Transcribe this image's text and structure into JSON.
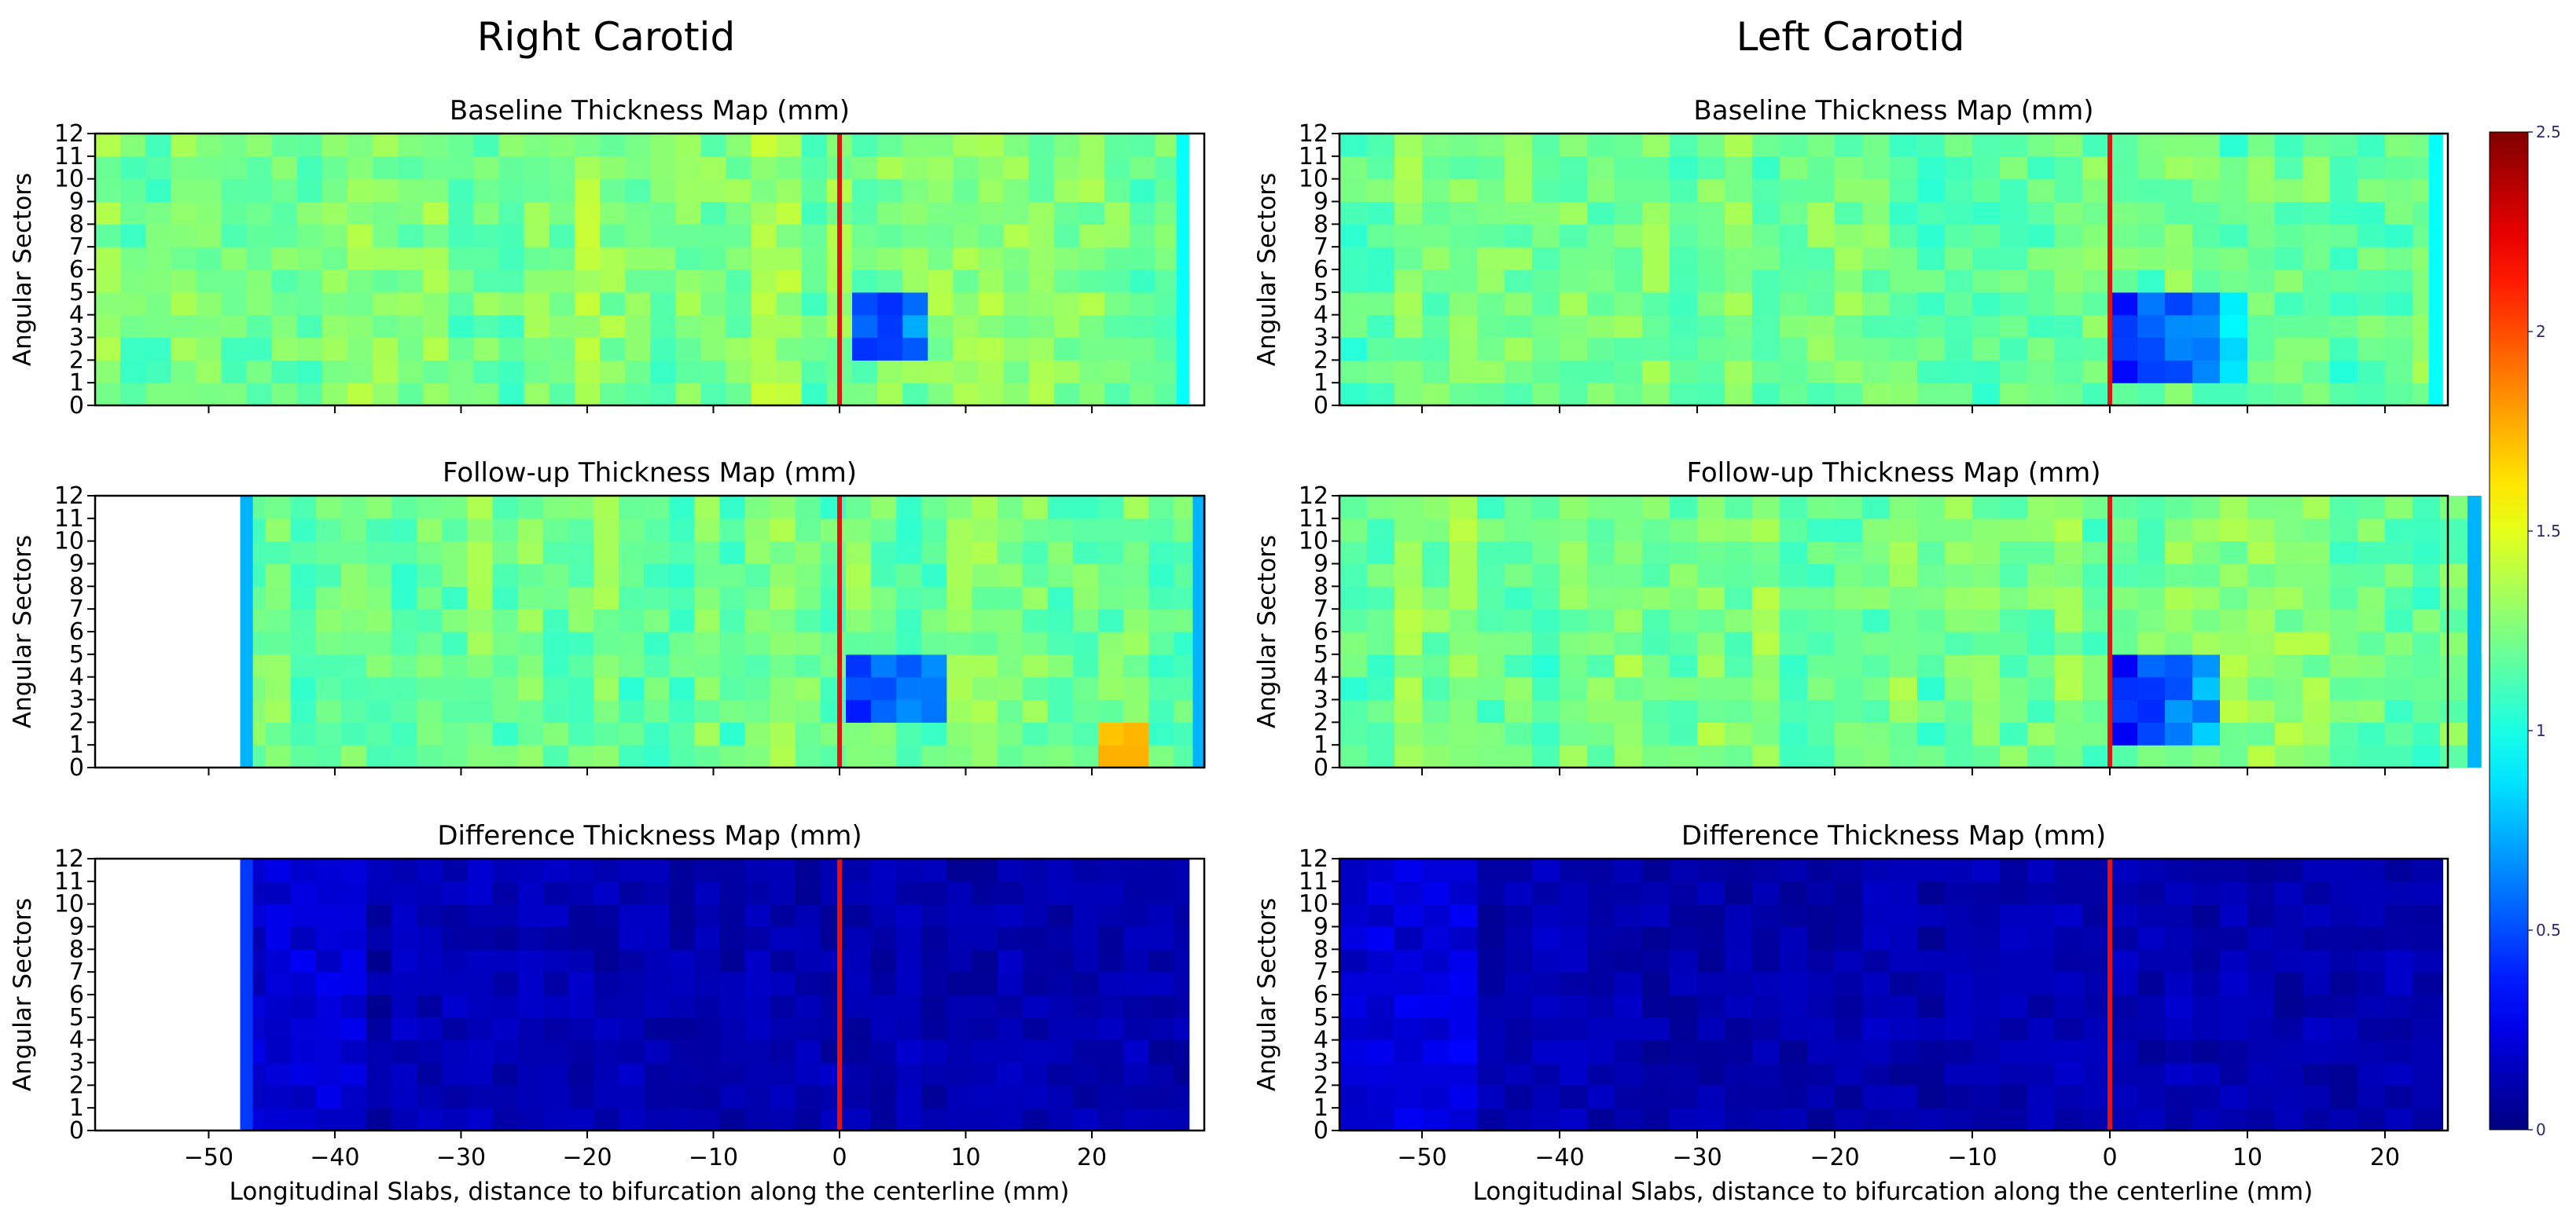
{
  "figure": {
    "columns": [
      {
        "title": "Right Carotid",
        "side": "right",
        "x_data_range": [
          -59,
          29
        ],
        "panels": [
          {
            "key": "baseline",
            "title": "Baseline Thickness Map (mm)",
            "coverage": [
              -59,
              27.7
            ]
          },
          {
            "key": "followup",
            "title": "Follow-up Thickness Map (mm)",
            "coverage": [
              -47.5,
              29
            ]
          },
          {
            "key": "difference",
            "title": "Difference Thickness Map (mm)",
            "coverage": [
              -47.5,
              27.7
            ]
          }
        ]
      },
      {
        "title": "Left Carotid",
        "side": "left",
        "x_data_range": [
          -56,
          27
        ],
        "panels": [
          {
            "key": "baseline",
            "title": "Baseline Thickness Map (mm)",
            "coverage": [
              -56,
              24.2
            ]
          },
          {
            "key": "followup",
            "title": "Follow-up Thickness Map (mm)",
            "coverage": [
              -56,
              27
            ]
          },
          {
            "key": "difference",
            "title": "Difference Thickness Map (mm)",
            "coverage": [
              -56,
              24.2
            ]
          }
        ]
      }
    ],
    "y_label": "Angular Sectors",
    "x_label": "Longitudinal Slabs, distance to bifurcation along the centerline (mm)",
    "y_ticks": [
      "0",
      "1",
      "2",
      "3",
      "4",
      "5",
      "6",
      "7",
      "8",
      "9",
      "10",
      "11",
      "12"
    ],
    "x_ticks_right": [
      "−50",
      "−40",
      "−30",
      "−20",
      "−10",
      "0",
      "10",
      "20"
    ],
    "x_ticks_left": [
      "−50",
      "−40",
      "−30",
      "−20",
      "−10",
      "0",
      "10",
      "20"
    ],
    "colorbar": {
      "ticks": [
        "0",
        "0.5",
        "1",
        "1.5",
        "2",
        "2.5"
      ],
      "colormap": "jet",
      "vmin": 0,
      "vmax": 2.5
    },
    "bifurcation_line_color": "#e11414"
  },
  "chart_data": [
    {
      "type": "heatmap",
      "title": "Baseline Thickness Map (mm)",
      "column": "Right Carotid",
      "xlabel": "",
      "ylabel": "Angular Sectors",
      "xlim": [
        -59,
        29
      ],
      "ylim": [
        0,
        12
      ],
      "typical_value_mm": 1.25,
      "stenosis_region": {
        "x": [
          0,
          7
        ],
        "sectors": [
          2,
          5
        ],
        "value_mm": 0.35
      },
      "bifurcation_x": 0
    },
    {
      "type": "heatmap",
      "title": "Follow-up Thickness Map (mm)",
      "column": "Right Carotid",
      "xlabel": "",
      "ylabel": "Angular Sectors",
      "xlim": [
        -59,
        29
      ],
      "ylim": [
        0,
        12
      ],
      "typical_value_mm": 1.2,
      "stenosis_region": {
        "x": [
          0,
          8
        ],
        "sectors": [
          2,
          5
        ],
        "value_mm": 0.35
      },
      "hotspot": {
        "x": 22,
        "sectors": [
          0,
          2
        ],
        "value_mm": 1.7
      },
      "bifurcation_x": 0
    },
    {
      "type": "heatmap",
      "title": "Difference Thickness Map (mm)",
      "column": "Right Carotid",
      "xlabel": "Longitudinal Slabs, distance to bifurcation along the centerline (mm)",
      "ylabel": "Angular Sectors",
      "xlim": [
        -59,
        29
      ],
      "ylim": [
        0,
        12
      ],
      "typical_value_mm": 0.12,
      "bifurcation_x": 0
    },
    {
      "type": "heatmap",
      "title": "Baseline Thickness Map (mm)",
      "column": "Left Carotid",
      "xlabel": "",
      "ylabel": "Angular Sectors",
      "xlim": [
        -56,
        27
      ],
      "ylim": [
        0,
        12
      ],
      "typical_value_mm": 1.2,
      "stenosis_region": {
        "x": [
          0,
          9
        ],
        "sectors": [
          1,
          5
        ],
        "value_mm": 0.35
      },
      "bifurcation_x": 0
    },
    {
      "type": "heatmap",
      "title": "Follow-up Thickness Map (mm)",
      "column": "Left Carotid",
      "xlabel": "",
      "ylabel": "Angular Sectors",
      "xlim": [
        -56,
        27
      ],
      "ylim": [
        0,
        12
      ],
      "typical_value_mm": 1.22,
      "stenosis_region": {
        "x": [
          0,
          8
        ],
        "sectors": [
          1,
          5
        ],
        "value_mm": 0.35
      },
      "bifurcation_x": 0
    },
    {
      "type": "heatmap",
      "title": "Difference Thickness Map (mm)",
      "column": "Left Carotid",
      "xlabel": "Longitudinal Slabs, distance to bifurcation along the centerline (mm)",
      "ylabel": "Angular Sectors",
      "xlim": [
        -56,
        27
      ],
      "ylim": [
        0,
        12
      ],
      "typical_value_mm": 0.12,
      "bifurcation_x": 0
    }
  ]
}
